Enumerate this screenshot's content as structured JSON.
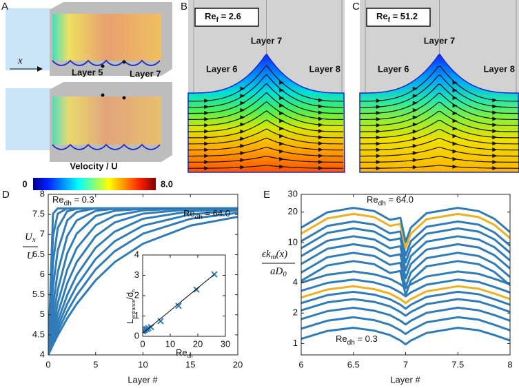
{
  "panels": [
    {
      "label": "A",
      "axis_label": "x",
      "layer_labels": [
        "Layer 5",
        "Layer 7"
      ],
      "colorbar": {
        "title": "Velocity / U",
        "min": "0",
        "max": "8.0"
      }
    },
    {
      "label": "B",
      "reynolds": {
        "base": "Re",
        "sub": "f",
        "rest": " = 2.6"
      },
      "layer_labels": [
        "Layer 7",
        "Layer 6",
        "Layer 8"
      ]
    },
    {
      "label": "C",
      "reynolds": {
        "base": "Re",
        "sub": "f",
        "rest": " = 51.2"
      },
      "layer_labels": [
        "Layer 7",
        "Layer 6",
        "Layer 8"
      ]
    },
    {
      "label": "D"
    },
    {
      "label": "E"
    }
  ],
  "chart_data": [
    {
      "type": "line",
      "xlabel": "Layer #",
      "ylabel": {
        "numerator": "U",
        "numerator_sub": "x",
        "denominator": "U"
      },
      "annotations": [
        {
          "base": "Re",
          "sub": "dh",
          "rest": " = 0.3"
        },
        {
          "base": "Re",
          "sub": "dh",
          "rest": " = 64.0"
        }
      ],
      "xlim": [
        0,
        20
      ],
      "xticks": [
        0,
        5,
        10,
        15,
        20
      ],
      "ylim": [
        4,
        8
      ],
      "yticks": [
        4,
        4.5,
        5,
        5.5,
        6,
        6.5,
        7,
        7.5,
        8
      ],
      "series": [
        {
          "color": "#2f7cb9",
          "x": [
            0,
            0.5,
            1,
            2,
            3,
            5,
            7,
            10,
            15,
            20
          ],
          "values": [
            4,
            7.52,
            7.65,
            7.65,
            7.65,
            7.65,
            7.65,
            7.65,
            7.65,
            7.65
          ]
        },
        {
          "color": "#2f7cb9",
          "x": [
            0,
            0.5,
            1,
            2,
            3,
            5,
            7,
            10,
            15,
            20
          ],
          "values": [
            4,
            6.96,
            7.52,
            7.65,
            7.65,
            7.65,
            7.65,
            7.65,
            7.65,
            7.65
          ]
        },
        {
          "color": "#2f7cb9",
          "x": [
            0,
            0.5,
            1,
            2,
            3,
            5,
            7,
            10,
            15,
            20
          ],
          "values": [
            4,
            6.31,
            7.16,
            7.58,
            7.64,
            7.65,
            7.65,
            7.65,
            7.65,
            7.65
          ]
        },
        {
          "color": "#2f7cb9",
          "x": [
            0,
            0.5,
            1,
            2,
            3,
            5,
            7,
            10,
            15,
            20
          ],
          "values": [
            4,
            5.7,
            6.6,
            7.35,
            7.56,
            7.65,
            7.65,
            7.65,
            7.65,
            7.65
          ]
        },
        {
          "color": "#2f7cb9",
          "x": [
            0,
            0.5,
            1,
            2,
            3,
            5,
            7,
            10,
            15,
            20
          ],
          "values": [
            4,
            5.24,
            6.06,
            6.96,
            7.35,
            7.59,
            7.64,
            7.65,
            7.65,
            7.65
          ]
        },
        {
          "color": "#2f7cb9",
          "x": [
            0,
            0.5,
            1,
            2,
            3,
            5,
            7,
            10,
            15,
            20
          ],
          "values": [
            4,
            4.93,
            5.62,
            6.53,
            7.02,
            7.46,
            7.59,
            7.64,
            7.65,
            7.65
          ]
        },
        {
          "color": "#2f7cb9",
          "x": [
            0,
            0.5,
            1,
            2,
            3,
            5,
            7,
            10,
            15,
            20
          ],
          "values": [
            4,
            4.71,
            5.29,
            6.12,
            6.66,
            7.23,
            7.47,
            7.6,
            7.65,
            7.65
          ]
        },
        {
          "color": "#2f7cb9",
          "x": [
            0,
            0.5,
            1,
            2,
            3,
            5,
            7,
            10,
            15,
            20
          ],
          "values": [
            4,
            4.56,
            5.03,
            5.78,
            6.31,
            6.96,
            7.3,
            7.52,
            7.63,
            7.65
          ]
        },
        {
          "color": "#2f7cb9",
          "x": [
            0,
            0.5,
            1,
            2,
            3,
            5,
            7,
            10,
            15,
            20
          ],
          "values": [
            4,
            4.45,
            4.84,
            5.49,
            5.99,
            6.67,
            7.07,
            7.39,
            7.58,
            7.63
          ]
        },
        {
          "color": "#2f7cb9",
          "x": [
            0,
            0.5,
            1,
            2,
            3,
            5,
            7,
            10,
            15,
            20
          ],
          "values": [
            4,
            4.37,
            4.7,
            5.27,
            5.72,
            6.39,
            6.83,
            7.22,
            7.5,
            7.6
          ]
        },
        {
          "color": "#2f7cb9",
          "x": [
            0,
            0.5,
            1,
            2,
            3,
            5,
            7,
            10,
            15,
            20
          ],
          "values": [
            4,
            4.31,
            4.59,
            5.08,
            5.49,
            6.13,
            6.58,
            7.02,
            7.39,
            7.54
          ]
        },
        {
          "color": "#2f7cb9",
          "x": [
            0,
            0.5,
            1,
            2,
            3,
            5,
            7,
            10,
            15,
            20
          ],
          "values": [
            4,
            4.25,
            4.49,
            4.91,
            5.27,
            5.86,
            6.31,
            6.77,
            7.22,
            7.44
          ]
        }
      ]
    },
    {
      "type": "scatter",
      "xlabel": {
        "base": "Re",
        "sub": "dh"
      },
      "ylabel": {
        "base": "L",
        "sub": "entrance",
        "rest": "/d",
        "rest_sub": "h"
      },
      "xlim": [
        0,
        30
      ],
      "xticks": [
        0,
        10,
        20,
        30
      ],
      "ylim": [
        0,
        4
      ],
      "yticks": [
        0,
        1,
        2,
        3,
        4
      ],
      "series": [
        {
          "color": "#2f7cb9",
          "marker": "x",
          "x": [
            0.1,
            0.3,
            0.6,
            1,
            1.5,
            2,
            3,
            6.5,
            13,
            19.5,
            26
          ],
          "values": [
            0.25,
            0.3,
            0.3,
            0.35,
            0.35,
            0.4,
            0.45,
            0.75,
            1.5,
            2.3,
            3.05
          ]
        },
        {
          "color": "#000000",
          "style": "line",
          "x": [
            0,
            26
          ],
          "values": [
            0.15,
            3.05
          ]
        }
      ]
    },
    {
      "type": "line",
      "xlabel": "Layer #",
      "ylabel": {
        "numerator": "ϵk",
        "numerator_sub": "m",
        "numerator_rest": "(x)",
        "denominator": "aD",
        "denominator_sub": "0"
      },
      "annotations": [
        {
          "base": "Re",
          "sub": "dh",
          "rest": " = 64.0"
        },
        {
          "base": "Re",
          "sub": "dh",
          "rest": " = 0.3"
        }
      ],
      "log_y": true,
      "xlim": [
        6,
        8
      ],
      "xticks": [
        6,
        6.5,
        7,
        7.5,
        8
      ],
      "ylim": [
        0.77,
        30
      ],
      "yticks": [
        1,
        2,
        4,
        10,
        20,
        30
      ],
      "series": [
        {
          "color": "#2f7cb9",
          "x": [
            6,
            6.25,
            6.5,
            6.7,
            6.85,
            6.95,
            7,
            7.05,
            7.2,
            7.5,
            7.7,
            7.85,
            8
          ],
          "values": [
            1.11,
            1.33,
            1.43,
            1.34,
            1.21,
            1.07,
            0.98,
            1.07,
            1.27,
            1.43,
            1.35,
            1.21,
            1.07
          ]
        },
        {
          "color": "#2f7cb9",
          "x": [
            6,
            6.25,
            6.5,
            6.7,
            6.85,
            6.95,
            7,
            7.05,
            7.2,
            7.5,
            7.7,
            7.85,
            8
          ],
          "values": [
            1.4,
            1.68,
            1.82,
            1.7,
            1.53,
            1.35,
            1.24,
            1.35,
            1.62,
            1.82,
            1.72,
            1.53,
            1.35
          ]
        },
        {
          "color": "#2f7cb9",
          "x": [
            6,
            6.25,
            6.5,
            6.7,
            6.85,
            6.95,
            7,
            7.05,
            7.2,
            7.5,
            7.7,
            7.85,
            8
          ],
          "values": [
            1.74,
            2.09,
            2.26,
            2.11,
            1.91,
            1.68,
            1.54,
            1.68,
            2.01,
            2.26,
            2.13,
            1.91,
            1.68
          ]
        },
        {
          "color": "#2f7cb9",
          "x": [
            6,
            6.25,
            6.5,
            6.7,
            6.85,
            6.95,
            7,
            7.05,
            7.2,
            7.5,
            7.7,
            7.85,
            8
          ],
          "values": [
            2.13,
            2.55,
            2.75,
            2.58,
            2.33,
            2.05,
            1.88,
            2.05,
            2.45,
            2.75,
            2.6,
            2.33,
            2.05
          ]
        },
        {
          "color": "#2f7cb9",
          "x": [
            6,
            6.25,
            6.5,
            6.7,
            6.85,
            6.95,
            7,
            7.05,
            7.2,
            7.5,
            7.7,
            7.85,
            8
          ],
          "values": [
            2.51,
            3.01,
            3.25,
            3.04,
            2.74,
            2.42,
            2.21,
            2.42,
            2.89,
            3.25,
            3.07,
            2.74,
            2.42
          ]
        },
        {
          "color": "#edb120",
          "x": [
            6,
            6.25,
            6.5,
            6.7,
            6.85,
            6.95,
            7,
            7.05,
            7.2,
            7.5,
            7.7,
            7.85,
            8
          ],
          "values": [
            2.85,
            3.42,
            3.69,
            3.45,
            3.12,
            2.75,
            2.51,
            2.75,
            3.28,
            3.69,
            3.48,
            3.12,
            2.75
          ]
        },
        {
          "color": "#2f7cb9",
          "x": [
            6,
            6.25,
            6.5,
            6.7,
            6.85,
            6.95,
            7,
            7.05,
            7.2,
            7.5,
            7.7,
            7.85,
            8
          ],
          "values": [
            3.32,
            3.98,
            4.29,
            4.02,
            3.63,
            3.2,
            2.93,
            3.2,
            3.82,
            4.29,
            4.06,
            3.63,
            3.2
          ]
        },
        {
          "color": "#2f7cb9",
          "x": [
            6,
            6.25,
            6.5,
            6.7,
            6.85,
            6.95,
            7,
            7.05,
            7.2,
            7.5,
            7.7,
            7.85,
            8
          ],
          "values": [
            4,
            4.79,
            5.17,
            4.84,
            4.37,
            3.85,
            3.53,
            3.85,
            4.61,
            5.17,
            4.89,
            4.37,
            3.85
          ]
        },
        {
          "color": "#2f7cb9",
          "x": [
            6,
            6.25,
            6.5,
            6.7,
            6.85,
            6.95,
            7,
            7.05,
            7.2,
            7.5,
            7.7,
            7.85,
            8
          ],
          "values": [
            4.18,
            5.92,
            6.55,
            6.09,
            4.99,
            5.22,
            3.02,
            4.18,
            5.8,
            6.55,
            6.09,
            5.1,
            3.77
          ]
        },
        {
          "color": "#2f7cb9",
          "x": [
            6,
            6.25,
            6.5,
            6.7,
            6.85,
            6.95,
            7,
            7.05,
            7.2,
            7.5,
            7.7,
            7.85,
            8
          ],
          "values": [
            5.04,
            7.14,
            7.91,
            7.35,
            6.02,
            6.3,
            3.64,
            5.04,
            7,
            7.91,
            7.35,
            6.16,
            4.55
          ]
        },
        {
          "color": "#2f7cb9",
          "x": [
            6,
            6.25,
            6.5,
            6.7,
            6.85,
            6.95,
            7,
            7.05,
            7.2,
            7.5,
            7.7,
            7.85,
            8
          ],
          "values": [
            6.12,
            8.67,
            9.61,
            8.93,
            7.31,
            7.65,
            4.42,
            6.12,
            8.5,
            9.61,
            8.93,
            7.48,
            5.53
          ]
        },
        {
          "color": "#2f7cb9",
          "x": [
            6,
            6.25,
            6.5,
            6.7,
            6.85,
            6.95,
            7,
            7.05,
            7.2,
            7.5,
            7.7,
            7.85,
            8
          ],
          "values": [
            7.34,
            10.4,
            11.53,
            10.71,
            8.77,
            9.18,
            5.3,
            7.34,
            10.2,
            11.53,
            10.71,
            8.98,
            6.63
          ]
        },
        {
          "color": "#2f7cb9",
          "x": [
            6,
            6.25,
            6.5,
            6.7,
            6.85,
            6.95,
            7,
            7.05,
            7.2,
            7.5,
            7.7,
            7.85,
            8
          ],
          "values": [
            8.78,
            12.44,
            13.79,
            12.81,
            10.49,
            10.98,
            6.34,
            8.78,
            12.2,
            13.79,
            12.81,
            10.74,
            7.93
          ]
        },
        {
          "color": "#2f7cb9",
          "x": [
            6,
            6.25,
            6.5,
            6.7,
            6.85,
            6.95,
            7,
            7.05,
            7.2,
            7.5,
            7.7,
            7.85,
            8
          ],
          "values": [
            10.3,
            14.59,
            16.16,
            15.02,
            12.3,
            12.87,
            7.44,
            10.3,
            14.3,
            16.16,
            15.02,
            12.58,
            9.3
          ]
        },
        {
          "color": "#edb120",
          "x": [
            6,
            6.25,
            6.5,
            6.7,
            6.85,
            6.95,
            7,
            7.05,
            7.2,
            7.5,
            7.7,
            7.85,
            8
          ],
          "values": [
            12.24,
            17.34,
            19.21,
            17.85,
            14.62,
            15.3,
            8.84,
            12.24,
            17,
            19.21,
            17.85,
            14.96,
            11.05
          ]
        },
        {
          "color": "#2f7cb9",
          "x": [
            6,
            6.25,
            6.5,
            6.7,
            6.85,
            6.95,
            7,
            7.05,
            7.2,
            7.5,
            7.7,
            7.85,
            8
          ],
          "values": [
            14.04,
            19.89,
            22.04,
            20.48,
            16.77,
            17.55,
            10.14,
            14.04,
            19.5,
            22.04,
            20.48,
            17.16,
            12.68
          ]
        }
      ]
    }
  ]
}
